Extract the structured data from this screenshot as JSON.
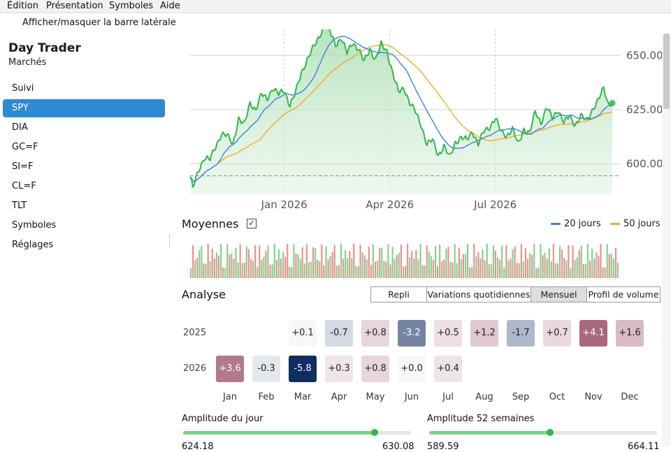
{
  "menu": [
    "Édition",
    "Présentation",
    "Symboles",
    "Aide"
  ],
  "toolbar": {
    "toggle_sidebar": "Afficher/masquer la barre latérale"
  },
  "app": {
    "title": "Day Trader",
    "subtitle": "Marchés"
  },
  "sidebar": {
    "items": [
      {
        "label": "Suivi",
        "active": false
      },
      {
        "label": "SPY",
        "active": true
      },
      {
        "label": "DIA",
        "active": false
      },
      {
        "label": "GC=F",
        "active": false
      },
      {
        "label": "SI=F",
        "active": false
      },
      {
        "label": "CL=F",
        "active": false
      },
      {
        "label": "TLT",
        "active": false
      },
      {
        "label": "Symboles",
        "active": false
      },
      {
        "label": "Réglages",
        "active": false
      }
    ]
  },
  "colors": {
    "accent": "#2f8ad4",
    "price": "#2fb84a",
    "ma20": "#3d7ee6",
    "ma50": "#f0ab2a",
    "volume_up": "#7fcf8a",
    "volume_down": "#f08a8a"
  },
  "chart_data": {
    "type": "line",
    "x_ticks": [
      "Jan 2026",
      "Apr 2026",
      "Jul 2026"
    ],
    "y_ticks": [
      "650.00",
      "625.00",
      "600.00"
    ],
    "ylim": [
      586,
      662
    ],
    "reference_line": 594.5,
    "price_anchors": [
      [
        0,
        594
      ],
      [
        2,
        589
      ],
      [
        6,
        597
      ],
      [
        10,
        603
      ],
      [
        14,
        602
      ],
      [
        18,
        608
      ],
      [
        22,
        614
      ],
      [
        26,
        613
      ],
      [
        30,
        609
      ],
      [
        34,
        621
      ],
      [
        38,
        618
      ],
      [
        42,
        628
      ],
      [
        46,
        625
      ],
      [
        50,
        632
      ],
      [
        54,
        630
      ],
      [
        58,
        635
      ],
      [
        62,
        632
      ],
      [
        66,
        634
      ],
      [
        70,
        627
      ],
      [
        74,
        633
      ],
      [
        78,
        642
      ],
      [
        82,
        648
      ],
      [
        86,
        653
      ],
      [
        90,
        658
      ],
      [
        94,
        664
      ],
      [
        98,
        661
      ],
      [
        102,
        655
      ],
      [
        106,
        658
      ],
      [
        110,
        651
      ],
      [
        114,
        656
      ],
      [
        118,
        653
      ],
      [
        122,
        647
      ],
      [
        126,
        653
      ],
      [
        130,
        648
      ],
      [
        134,
        655
      ],
      [
        138,
        652
      ],
      [
        142,
        642
      ],
      [
        146,
        633
      ],
      [
        150,
        635
      ],
      [
        154,
        628
      ],
      [
        158,
        624
      ],
      [
        162,
        618
      ],
      [
        166,
        609
      ],
      [
        170,
        611
      ],
      [
        174,
        604
      ],
      [
        178,
        608
      ],
      [
        182,
        603
      ],
      [
        186,
        610
      ],
      [
        190,
        612
      ],
      [
        194,
        611
      ],
      [
        198,
        615
      ],
      [
        202,
        609
      ],
      [
        206,
        615
      ],
      [
        210,
        617
      ],
      [
        214,
        621
      ],
      [
        218,
        615
      ],
      [
        222,
        613
      ],
      [
        226,
        616
      ],
      [
        230,
        609
      ],
      [
        234,
        616
      ],
      [
        238,
        614
      ],
      [
        242,
        624
      ],
      [
        246,
        619
      ],
      [
        250,
        626
      ],
      [
        254,
        621
      ],
      [
        258,
        625
      ],
      [
        262,
        619
      ],
      [
        266,
        622
      ],
      [
        270,
        618
      ],
      [
        274,
        622
      ],
      [
        278,
        620
      ],
      [
        282,
        625
      ],
      [
        286,
        629
      ],
      [
        290,
        635
      ],
      [
        293,
        628
      ],
      [
        296,
        628
      ]
    ],
    "series": [
      {
        "name": "20 jours"
      },
      {
        "name": "50 jours"
      }
    ]
  },
  "moyennes": {
    "title": "Moyennes",
    "checked": "✓",
    "legend": [
      "20 jours",
      "50 jours"
    ]
  },
  "analyse": {
    "title": "Analyse",
    "tabs": [
      "Repli",
      "Variations quotidiennes",
      "Mensuel",
      "Profil de volume"
    ],
    "selected_tab": "Mensuel",
    "months": [
      "Jan",
      "Feb",
      "Mar",
      "Apr",
      "May",
      "Jun",
      "Jul",
      "Aug",
      "Sep",
      "Oct",
      "Nov",
      "Dec"
    ],
    "rows": [
      {
        "year": "2025",
        "values": [
          null,
          null,
          0.1,
          -0.7,
          0.8,
          -3.2,
          0.5,
          1.2,
          -1.7,
          0.7,
          4.1,
          1.6
        ],
        "labels": [
          "",
          "",
          "+0.1",
          "-0.7",
          "+0.8",
          "-3.2",
          "+0.5",
          "+1.2",
          "-1.7",
          "+0.7",
          "+4.1",
          "+1.6"
        ]
      },
      {
        "year": "2026",
        "values": [
          3.6,
          -0.3,
          -5.8,
          0.3,
          0.8,
          0.0,
          0.4,
          null,
          null,
          null,
          null,
          null
        ],
        "labels": [
          "+3.6",
          "-0.3",
          "-5.8",
          "+0.3",
          "+0.8",
          "+0.0",
          "+0.4",
          "",
          "",
          "",
          "",
          ""
        ]
      }
    ]
  },
  "ranges": {
    "day": {
      "title": "Amplitude du jour",
      "low": "624.18",
      "high": "630.08",
      "position": 0.84
    },
    "week52": {
      "title": "Amplitude 52 semaines",
      "low": "589.59",
      "high": "664.11",
      "position": 0.53
    }
  }
}
